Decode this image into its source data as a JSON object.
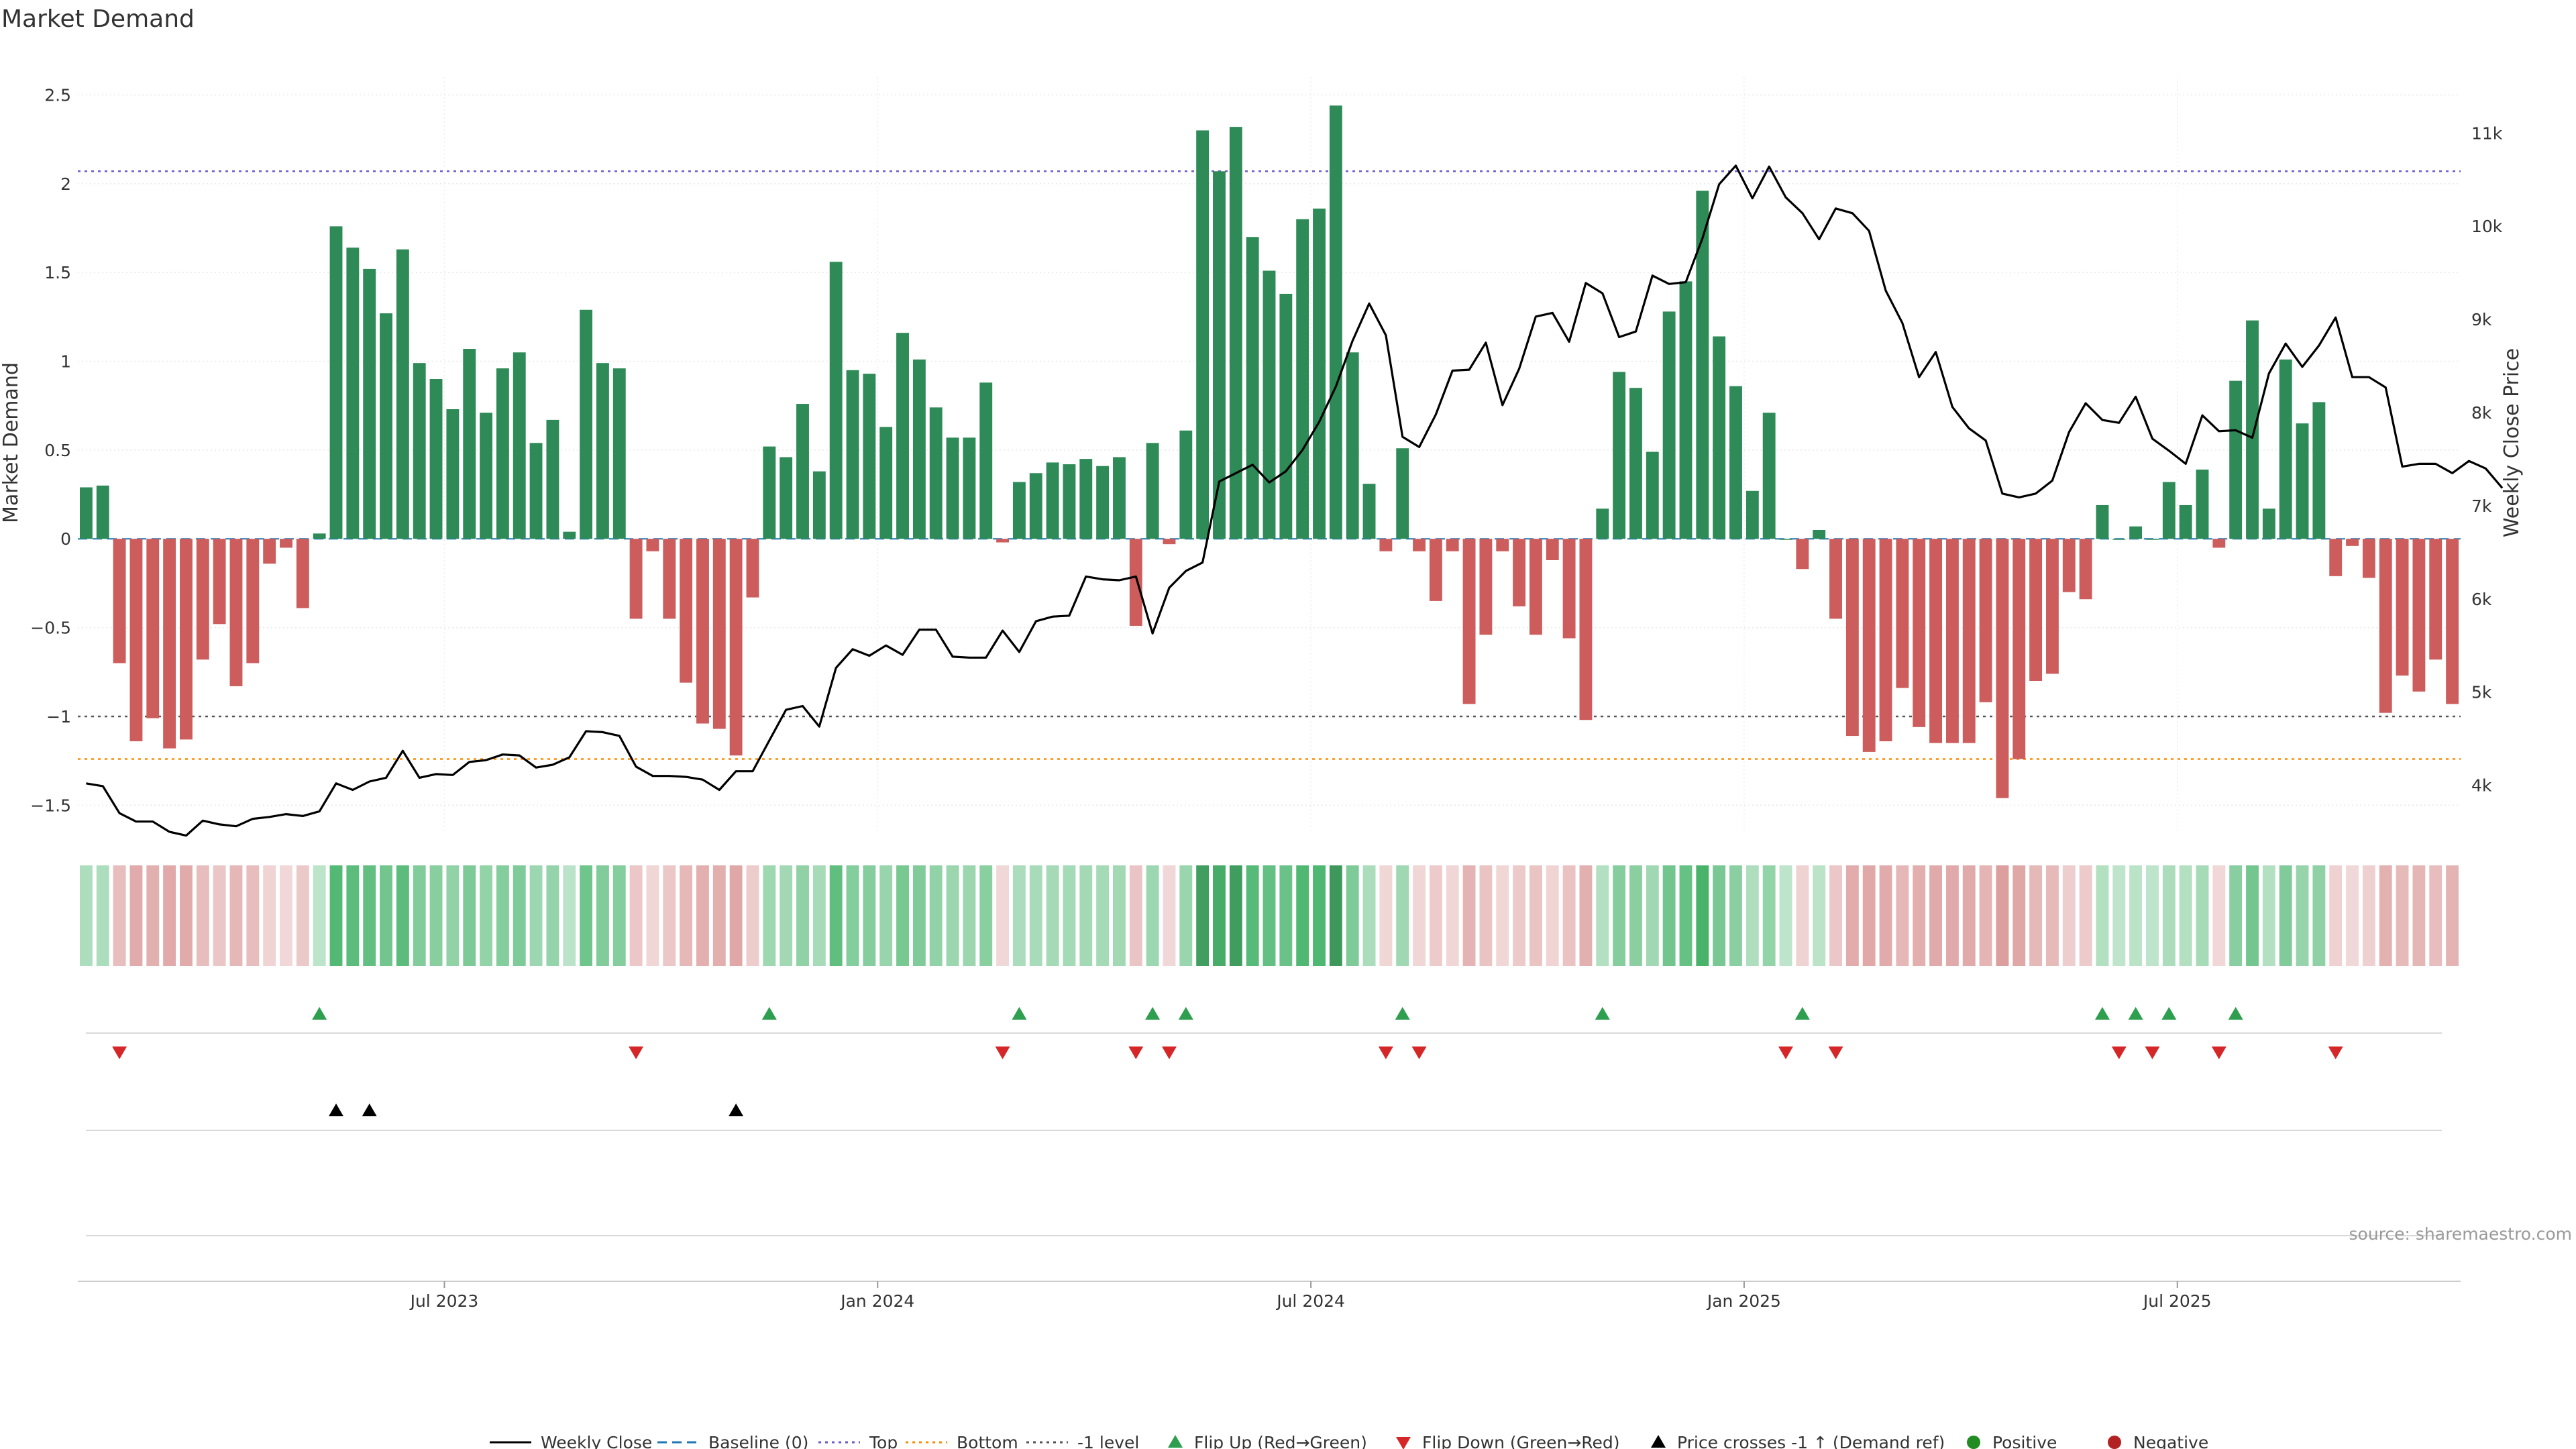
{
  "chart_data": {
    "type": "bar",
    "title": "Market Demand",
    "ylabel": "Market Demand",
    "y2label": "Weekly Close Price",
    "ylim": [
      -1.65,
      2.6
    ],
    "y2lim": [
      3500,
      11600
    ],
    "yticks": [
      "2.5",
      "2",
      "1.5",
      "1",
      "0.5",
      "0",
      "−0.5",
      "−1",
      "−1.5"
    ],
    "yticks_values": [
      2.5,
      2,
      1.5,
      1,
      0.5,
      0,
      -0.5,
      -1,
      -1.5
    ],
    "y2ticks": [
      "11k",
      "10k",
      "9k",
      "8k",
      "7k",
      "6k",
      "5k",
      "4k"
    ],
    "y2ticks_values": [
      11000,
      10000,
      9000,
      8000,
      7000,
      6000,
      5000,
      4000
    ],
    "xticks": [
      "Jul 2023",
      "Jan 2024",
      "Jul 2024",
      "Jan 2025",
      "Jul 2025"
    ],
    "xticks_index": [
      22,
      48,
      74,
      100,
      126
    ],
    "reference_lines": {
      "top": 2.07,
      "minus1": -1.0,
      "bottom": -1.24
    },
    "demand": [
      0.29,
      0.3,
      -0.7,
      -1.14,
      -1.01,
      -1.18,
      -1.13,
      -0.68,
      -0.48,
      -0.83,
      -0.7,
      -0.14,
      -0.05,
      -0.39,
      0.03,
      1.76,
      1.64,
      1.52,
      1.27,
      1.63,
      0.99,
      0.9,
      0.73,
      1.07,
      0.71,
      0.96,
      1.05,
      0.54,
      0.67,
      0.04,
      1.29,
      0.99,
      0.96,
      -0.45,
      -0.07,
      -0.45,
      -0.81,
      -1.04,
      -1.07,
      -1.22,
      -0.33,
      0.52,
      0.46,
      0.76,
      0.38,
      1.56,
      0.95,
      0.93,
      0.63,
      1.16,
      1.01,
      0.74,
      0.57,
      0.57,
      0.88,
      -0.02,
      0.32,
      0.37,
      0.43,
      0.42,
      0.45,
      0.41,
      0.46,
      -0.49,
      0.54,
      -0.03,
      0.61,
      2.3,
      2.07,
      2.32,
      1.7,
      1.51,
      1.38,
      1.8,
      1.86,
      2.44,
      1.05,
      0.31,
      -0.07,
      0.51,
      -0.07,
      -0.35,
      -0.07,
      -0.93,
      -0.54,
      -0.07,
      -0.38,
      -0.54,
      -0.12,
      -0.56,
      -1.02,
      0.17,
      0.94,
      0.85,
      0.49,
      1.28,
      1.45,
      1.96,
      1.14,
      0.86,
      0.27,
      0.71,
      0.0,
      -0.17,
      0.05,
      -0.45,
      -1.11,
      -1.2,
      -1.14,
      -0.84,
      -1.06,
      -1.15,
      -1.15,
      -1.15,
      -0.92,
      -1.46,
      -1.24,
      -0.8,
      -0.76,
      -0.3,
      -0.34,
      0.19,
      0.0,
      0.07,
      0.0,
      0.32,
      0.19,
      0.39,
      -0.05,
      0.89,
      1.23,
      0.17,
      1.01,
      0.65,
      0.77,
      -0.21,
      -0.04,
      -0.22,
      -0.98,
      -0.77,
      -0.86,
      -0.68,
      -0.93
    ],
    "series": [
      {
        "name": "Weekly Close",
        "values": [
          4020,
          3990,
          3700,
          3610,
          3610,
          3500,
          3460,
          3620,
          3580,
          3560,
          3640,
          3660,
          3690,
          3670,
          3720,
          4020,
          3950,
          4040,
          4080,
          4370,
          4080,
          4120,
          4110,
          4250,
          4270,
          4330,
          4320,
          4190,
          4220,
          4300,
          4580,
          4570,
          4530,
          4200,
          4100,
          4100,
          4090,
          4060,
          3950,
          4150,
          4150,
          4480,
          4810,
          4850,
          4630,
          5260,
          5460,
          5390,
          5500,
          5400,
          5670,
          5670,
          5380,
          5370,
          5370,
          5660,
          5430,
          5760,
          5810,
          5820,
          6240,
          6210,
          6200,
          6240,
          5630,
          6120,
          6300,
          6390,
          7260,
          7350,
          7440,
          7250,
          7370,
          7600,
          7900,
          8280,
          8770,
          9170,
          8830,
          7740,
          7630,
          7980,
          8450,
          8460,
          8750,
          8080,
          8470,
          9030,
          9070,
          8760,
          9390,
          9280,
          8810,
          8870,
          9470,
          9380,
          9400,
          9870,
          10450,
          10650,
          10300,
          10640,
          10310,
          10140,
          9860,
          10190,
          10140,
          9950,
          9310,
          8960,
          8380,
          8650,
          8060,
          7830,
          7700,
          7130,
          7090,
          7130,
          7270,
          7790,
          8100,
          7920,
          7890,
          8170,
          7720,
          7590,
          7450,
          7970,
          7800,
          7810,
          7730,
          8420,
          8740,
          8490,
          8720,
          9020,
          8380,
          8380,
          8270,
          7420,
          7450,
          7450,
          7350,
          7480,
          7400,
          7190
        ]
      }
    ],
    "heat_strip": "weekly heat cells coloured by sign and strength of Market Demand",
    "flip_up_index": [
      14,
      41,
      56,
      64,
      66,
      79,
      91,
      103,
      121,
      123,
      125,
      129
    ],
    "flip_down_index": [
      2,
      33,
      55,
      63,
      65,
      78,
      80,
      102,
      105,
      122,
      124,
      128,
      135
    ],
    "price_cross_up_index": [
      15,
      17,
      39
    ],
    "source": "source: sharemaestro.com",
    "legend_placement": "bottom",
    "legend": [
      {
        "label": "Weekly Close",
        "kind": "line",
        "color": "#000000"
      },
      {
        "label": "Baseline (0)",
        "kind": "dash",
        "color": "#1f77b4"
      },
      {
        "label": "Top",
        "kind": "dot",
        "color": "#6a5acd"
      },
      {
        "label": "Bottom",
        "kind": "dot",
        "color": "#ff8c00"
      },
      {
        "label": "-1 level",
        "kind": "dot",
        "color": "#555555"
      },
      {
        "label": "Flip Up (Red→Green)",
        "kind": "tri-up",
        "color": "#2e9e4f"
      },
      {
        "label": "Flip Down (Green→Red)",
        "kind": "tri-down",
        "color": "#d62728"
      },
      {
        "label": "Price crosses -1 ↑ (Demand ref)",
        "kind": "tri-up",
        "color": "#000000"
      },
      {
        "label": "Positive",
        "kind": "circle",
        "color": "#228b22"
      },
      {
        "label": "Negative",
        "kind": "circle",
        "color": "#b22222"
      }
    ],
    "colors": {
      "positive": "#2e8b57",
      "negative": "#cd5c5c",
      "price": "#000000"
    }
  }
}
